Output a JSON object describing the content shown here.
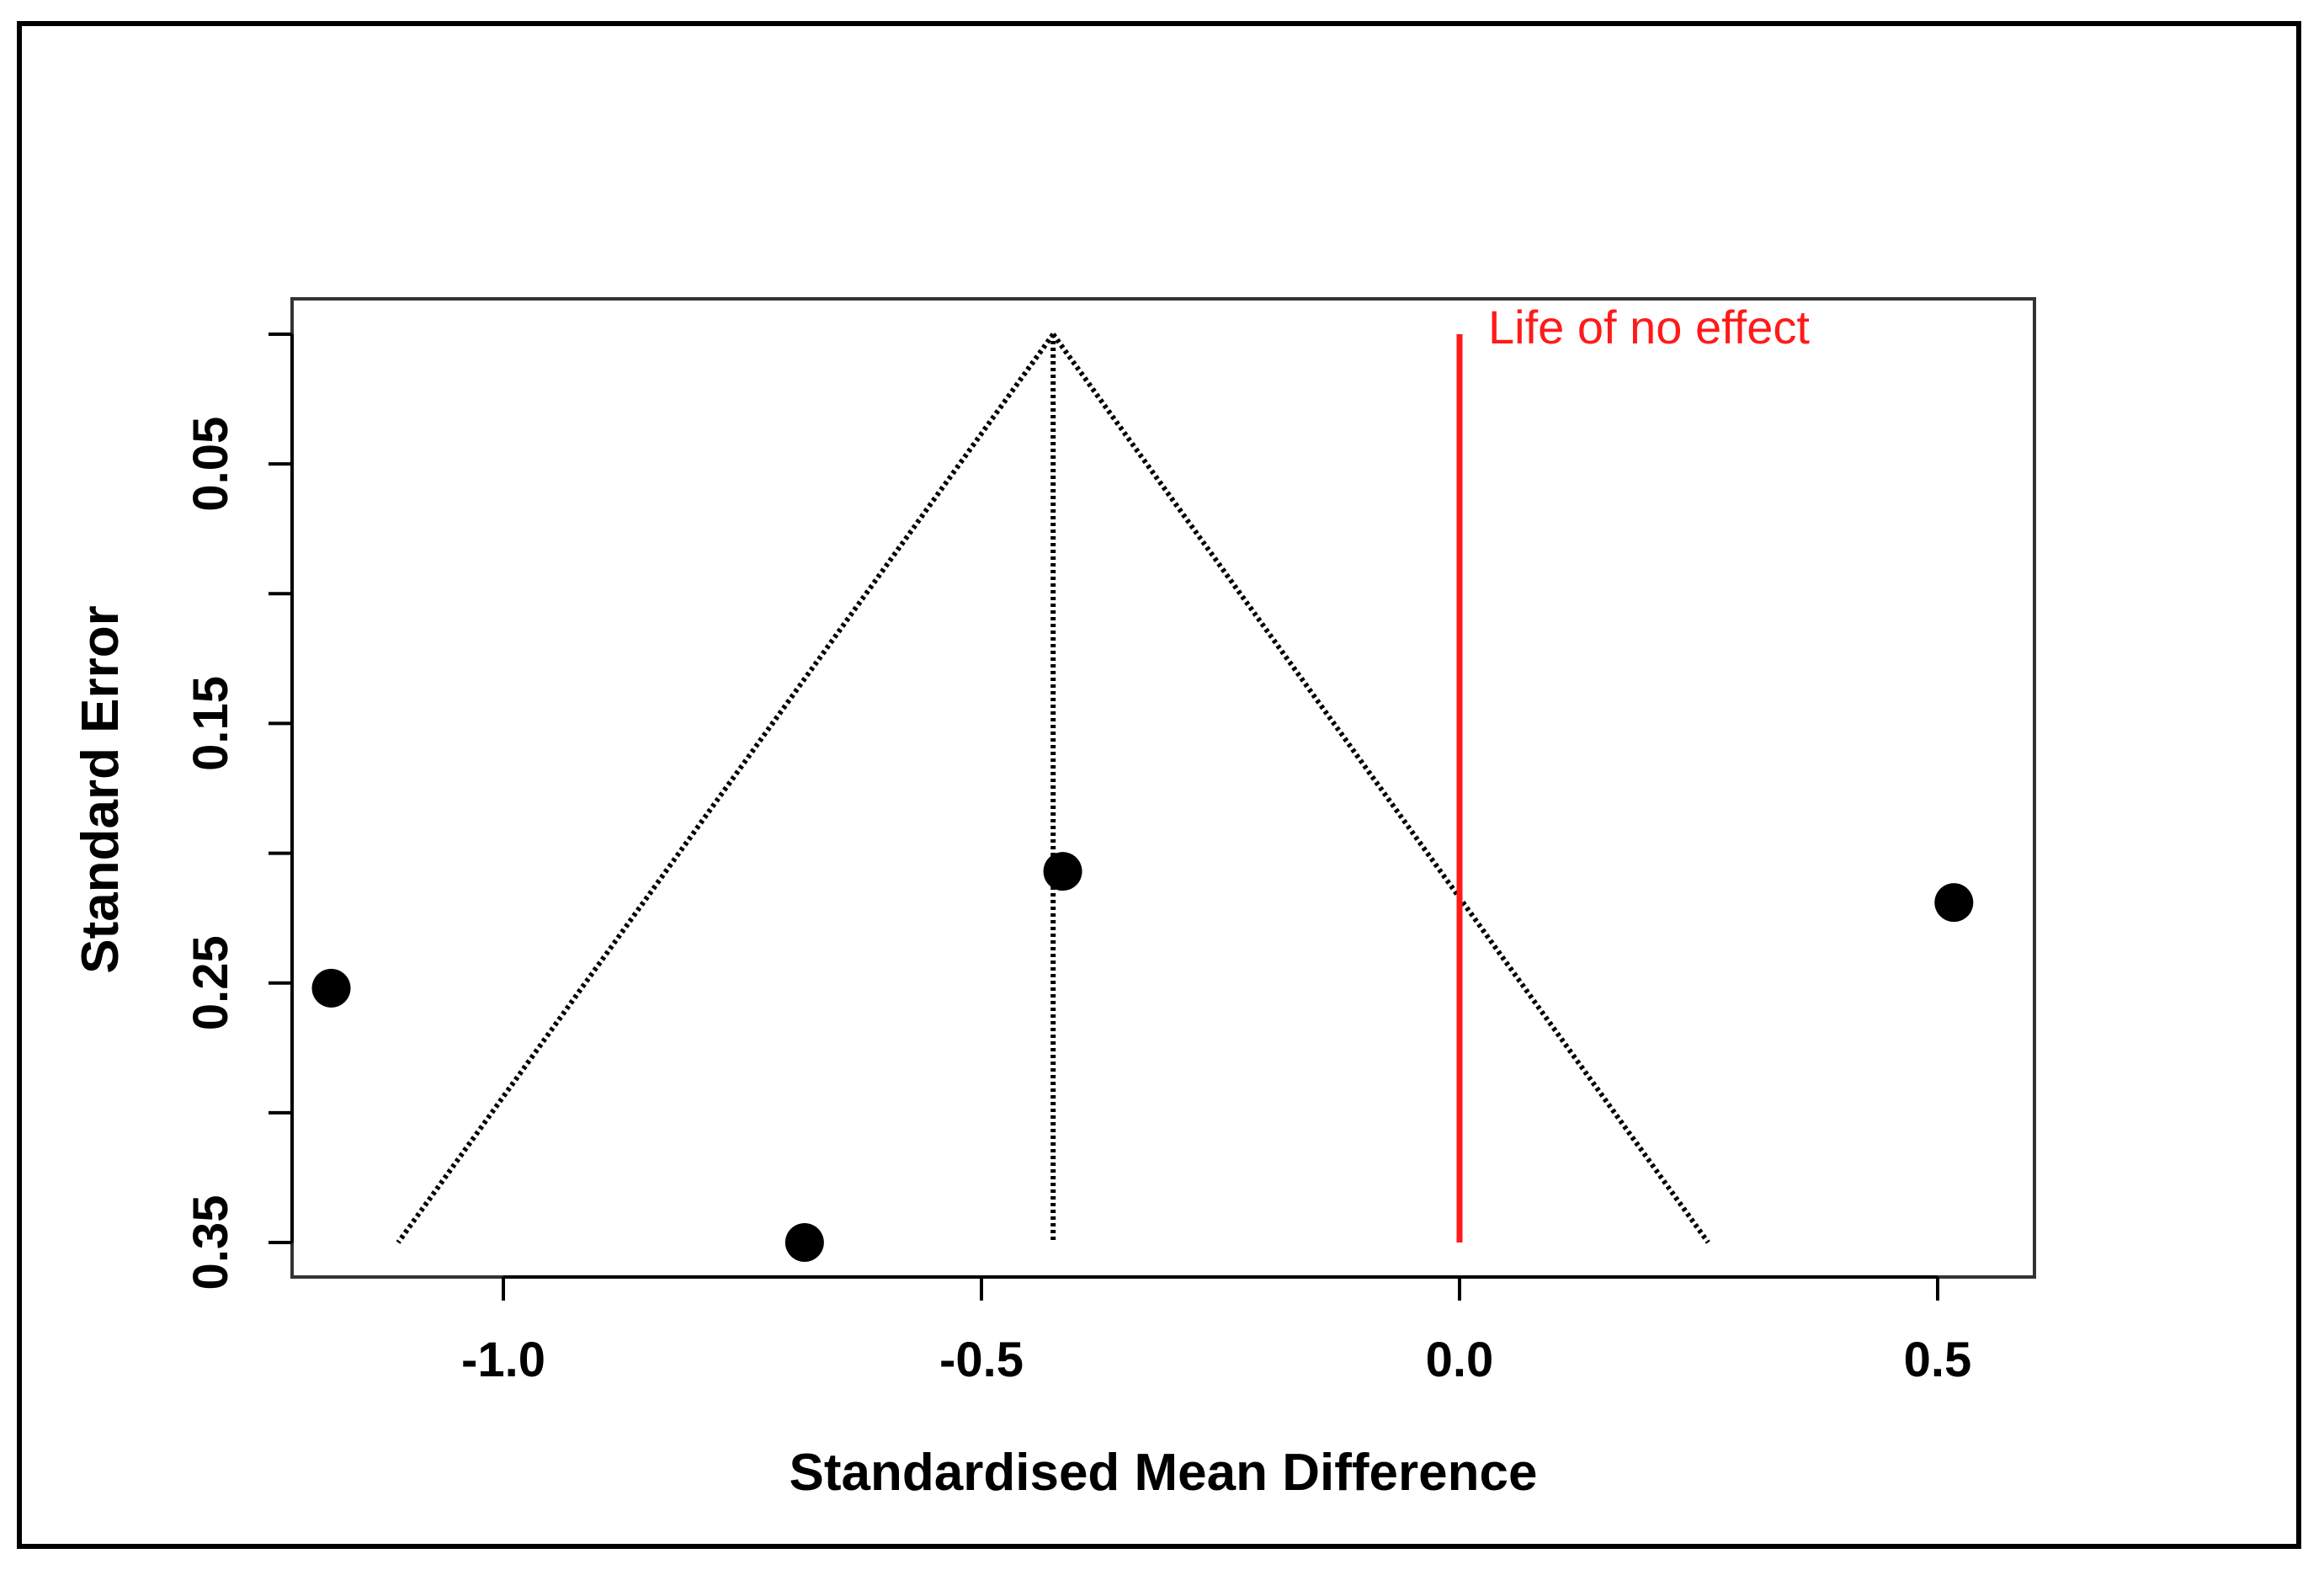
{
  "chart_data": {
    "type": "scatter",
    "title": "",
    "xlabel": "Standardised Mean Difference",
    "ylabel": "Standard Error",
    "xlim": [
      -1.22,
      0.6
    ],
    "ylim": [
      0,
      0.363
    ],
    "y_reversed": true,
    "x_ticks": [
      -1.0,
      -0.5,
      0.0,
      0.5
    ],
    "x_tick_labels": [
      "-1.0",
      "-0.5",
      "0.0",
      "0.5"
    ],
    "y_ticks": [
      0,
      0.05,
      0.1,
      0.15,
      0.2,
      0.25,
      0.3,
      0.35
    ],
    "y_tick_labels": [
      "",
      "0.05",
      "",
      "0.15",
      "",
      "0.25",
      "",
      "0.35"
    ],
    "grid": false,
    "series": [
      {
        "points": [
          {
            "x": -1.18,
            "y": 0.252
          },
          {
            "x": -0.685,
            "y": 0.35
          },
          {
            "x": -0.415,
            "y": 0.207
          },
          {
            "x": 0.517,
            "y": 0.219
          }
        ]
      }
    ],
    "funnel": {
      "apex": {
        "x": -0.425,
        "y": 0
      },
      "base_left": {
        "x": -1.11,
        "y": 0.35
      },
      "base_right": {
        "x": 0.26,
        "y": 0.35
      },
      "center_line_x": -0.425,
      "style": "dotted",
      "color": "#000000"
    },
    "reference_line": {
      "x": 0.0,
      "y_range": [
        0,
        0.35
      ],
      "color": "#ff1a1a",
      "label": "Life of no effect"
    },
    "colors": {
      "points": "#000000",
      "reference": "#ff1a1a",
      "axes": "#000000"
    }
  }
}
